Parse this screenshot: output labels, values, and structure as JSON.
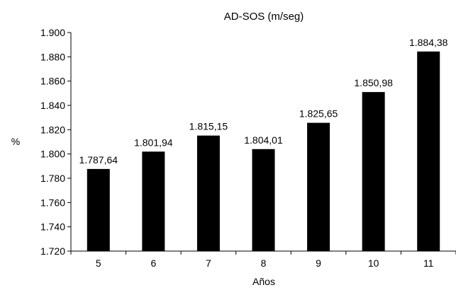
{
  "chart_data": {
    "type": "bar",
    "title": "AD-SOS (m/seg)",
    "xlabel": "Años",
    "ylabel": "%",
    "categories": [
      "5",
      "6",
      "7",
      "8",
      "9",
      "10",
      "11"
    ],
    "values": [
      1787.64,
      1801.94,
      1815.15,
      1804.01,
      1825.65,
      1850.98,
      1884.38
    ],
    "value_labels": [
      "1.787,64",
      "1.801,94",
      "1.815,15",
      "1.804,01",
      "1.825,65",
      "1.850,98",
      "1.884,38"
    ],
    "ylim": [
      1720,
      1900
    ],
    "yticks": [
      1720,
      1740,
      1760,
      1780,
      1800,
      1820,
      1840,
      1860,
      1880,
      1900
    ],
    "ytick_labels": [
      "1.720",
      "1.740",
      "1.760",
      "1.780",
      "1.800",
      "1.820",
      "1.840",
      "1.860",
      "1.880",
      "1.900"
    ],
    "grid": false,
    "legend": "none",
    "bar_color": "#000000"
  }
}
